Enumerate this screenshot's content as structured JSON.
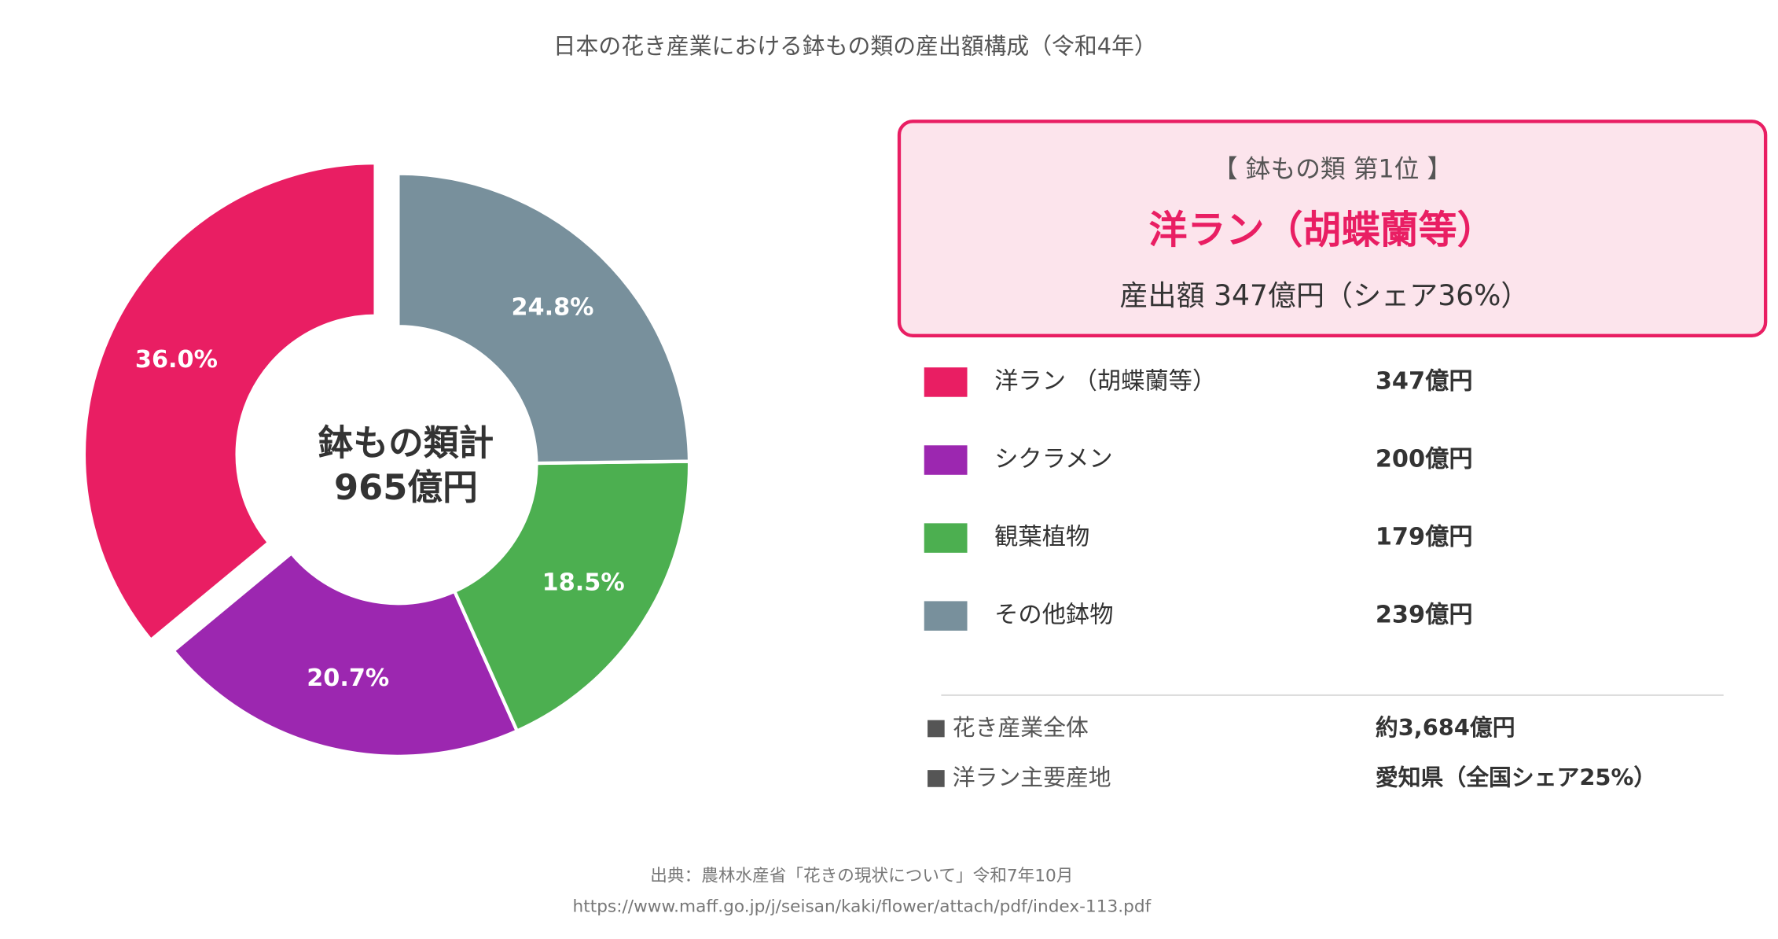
{
  "chart_data": {
    "type": "donut",
    "title": "日本の花き産業における鉢もの類の産出額構成（令和4年）",
    "center_label": [
      "鉢もの類計",
      "965億円"
    ],
    "categories": [
      "洋ラン （胡蝶蘭等）",
      "シクラメン",
      "観葉植物",
      "その他鉢物"
    ],
    "values": [
      36.0,
      20.7,
      18.5,
      24.8
    ],
    "value_labels": [
      "36.0%",
      "20.7%",
      "18.5%",
      "24.8%"
    ],
    "amounts": [
      "347億円",
      "200億円",
      "179億円",
      "239億円"
    ],
    "colors": [
      "#e91e63",
      "#9c27b0",
      "#4caf50",
      "#78909c"
    ],
    "explode": [
      true,
      false,
      false,
      false
    ],
    "highlight": {
      "heading": "【 鉢もの類 第1位 】",
      "name": "洋ラン（胡蝶蘭等）",
      "detail": "産出額 347億円（シェア36%）"
    },
    "notes": [
      {
        "label": "花き産業全体",
        "value": "約3,684億円"
      },
      {
        "label": "洋ラン主要産地",
        "value": "愛知県（全国シェア25%）"
      }
    ],
    "source": [
      "出典：農林水産省「花きの現状について」令和7年10月",
      "https://www.maff.go.jp/j/seisan/kaki/flower/attach/pdf/index-113.pdf"
    ]
  }
}
